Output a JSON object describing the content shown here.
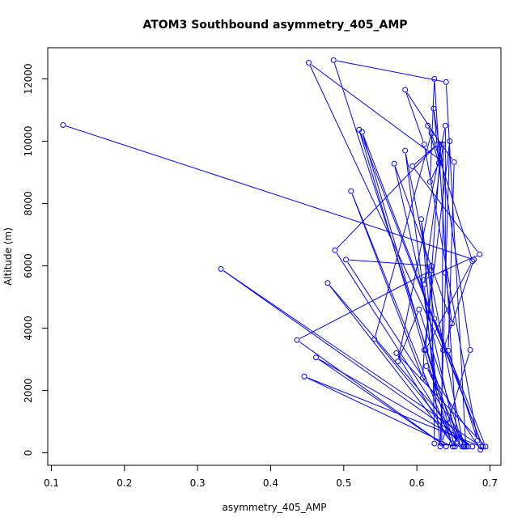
{
  "chart_data": {
    "type": "line",
    "title": "ATOM3 Southbound asymmetry_405_AMP",
    "xlabel": "asymmetry_405_AMP",
    "ylabel": "Altitude (m)",
    "xlim": [
      0.095,
      0.715
    ],
    "ylim": [
      -400,
      13000
    ],
    "x_ticks": [
      0.1,
      0.2,
      0.3,
      0.4,
      0.5,
      0.6,
      0.7
    ],
    "x_tick_labels": [
      "0.1",
      "0.2",
      "0.3",
      "0.4",
      "0.5",
      "0.6",
      "0.7"
    ],
    "y_ticks": [
      0,
      2000,
      4000,
      6000,
      8000,
      10000,
      12000
    ],
    "y_tick_labels": [
      "0",
      "2000",
      "4000",
      "6000",
      "8000",
      "10000",
      "12000"
    ],
    "grid": false,
    "marker": "open-circle",
    "series": [
      {
        "color": "#0000ff",
        "x": [
          0.116,
          0.678,
          0.636,
          0.452,
          0.632,
          0.618,
          0.624,
          0.655,
          0.486,
          0.64,
          0.667,
          0.662,
          0.542,
          0.62,
          0.676,
          0.612,
          0.633,
          0.584,
          0.61,
          0.683,
          0.643,
          0.651,
          0.615,
          0.63,
          0.623,
          0.673,
          0.634,
          0.636,
          0.61,
          0.632,
          0.645,
          0.61,
          0.608,
          0.51,
          0.648,
          0.572,
          0.694,
          0.624,
          0.606,
          0.627,
          0.584,
          0.664,
          0.603,
          0.574,
          0.639,
          0.639,
          0.648,
          0.569,
          0.655,
          0.488,
          0.628,
          0.594,
          0.686,
          0.609,
          0.62,
          0.503,
          0.67,
          0.478,
          0.652,
          0.525,
          0.69,
          0.521,
          0.649,
          0.446,
          0.688,
          0.332,
          0.676,
          0.462,
          0.64,
          0.436,
          0.62,
          0.624,
          0.665,
          0.613,
          0.687
        ],
        "y": [
          10520,
          6200,
          3300,
          12520,
          9400,
          8700,
          12000,
          300,
          12600,
          11900,
          200,
          200,
          3650,
          10250,
          6150,
          3300,
          9900,
          11650,
          9900,
          400,
          3280,
          9330,
          10500,
          9300,
          11050,
          3300,
          300,
          9900,
          5400,
          200,
          10000,
          3300,
          2400,
          8400,
          300,
          3200,
          200,
          4300,
          7500,
          1950,
          9700,
          200,
          4600,
          2930,
          10500,
          5770,
          4150,
          9280,
          350,
          6500,
          9900,
          9200,
          6370,
          5550,
          6000,
          6200,
          200,
          5450,
          200,
          10300,
          200,
          10370,
          200,
          2450,
          200,
          5900,
          200,
          3060,
          200,
          3620,
          5860,
          300,
          200,
          2780,
          100
        ]
      }
    ]
  }
}
